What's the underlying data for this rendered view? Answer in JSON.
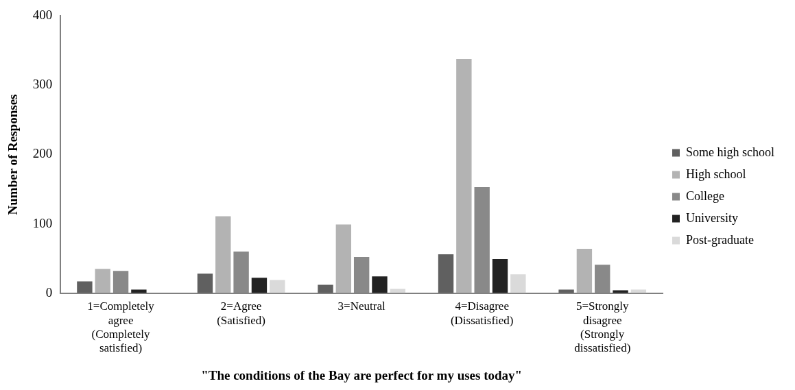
{
  "chart_data": {
    "type": "bar",
    "xlabel": "\"The conditions of the Bay are perfect for my uses today\"",
    "ylabel": "Number of Responses",
    "categories": [
      "1=Completely agree (Completely satisfied)",
      "2=Agree (Satisfied)",
      "3=Neutral",
      "4=Disagree (Dissatisfied)",
      "5=Strongly disagree (Strongly dissatisfied)"
    ],
    "series": [
      {
        "name": "Some high school",
        "color": "#606060",
        "values": [
          17,
          28,
          12,
          56,
          5
        ]
      },
      {
        "name": "High school",
        "color": "#b3b3b3",
        "values": [
          35,
          111,
          99,
          338,
          64
        ]
      },
      {
        "name": "College",
        "color": "#898989",
        "values": [
          32,
          60,
          52,
          153,
          41
        ]
      },
      {
        "name": "University",
        "color": "#222222",
        "values": [
          5,
          22,
          24,
          49,
          4
        ]
      },
      {
        "name": "Post-graduate",
        "color": "#dadada",
        "values": [
          0,
          19,
          6,
          27,
          5
        ]
      }
    ],
    "ylim": [
      0,
      400
    ],
    "yticks": [
      0,
      100,
      200,
      300,
      400
    ],
    "grid": false,
    "legend": "right"
  }
}
